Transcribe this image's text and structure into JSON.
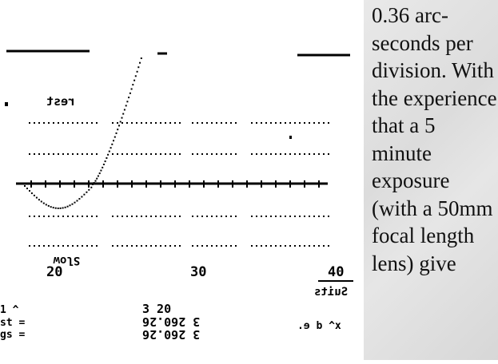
{
  "plot": {
    "ticks": [
      "20",
      "30",
      "40"
    ],
    "mirrored_labels": {
      "top": "rest",
      "bottom_left": "Slow",
      "bottom_right": "Suits"
    },
    "readout": {
      "left_lines": [
        "1 ^",
        "st =",
        "gs ="
      ],
      "mid_lines": [
        "3 20",
        "3 260.26",
        "3 260.26"
      ],
      "right": "x^ d  e."
    }
  },
  "side_text": "0.36 arc-seconds per division. With the experience that a 5 minute exposure (with a 50mm focal length lens) give"
}
